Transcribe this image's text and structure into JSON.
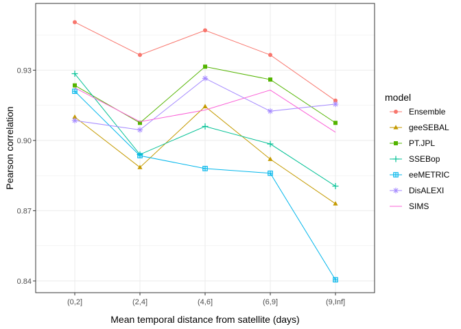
{
  "chart_data": {
    "type": "line",
    "xlabel": "Mean temporal distance from satellite (days)",
    "ylabel": "Pearson correlation",
    "categories": [
      "(0,2]",
      "(2,4]",
      "(4,6]",
      "(6,9]",
      "(9,Inf]"
    ],
    "ylim": [
      0.835,
      0.9585
    ],
    "yticks": [
      0.84,
      0.87,
      0.9,
      0.93
    ],
    "ytick_labels": [
      "0.84",
      "0.87",
      "0.90",
      "0.93"
    ],
    "grid": true,
    "legend_title": "model",
    "legend_position": "right",
    "series": [
      {
        "name": "Ensemble",
        "color": "#F8766D",
        "marker": "circle",
        "values": [
          0.9505,
          0.9365,
          0.947,
          0.9365,
          0.917
        ]
      },
      {
        "name": "geeSEBAL",
        "color": "#C49A00",
        "marker": "triangle",
        "values": [
          0.91,
          0.8885,
          0.9145,
          0.892,
          0.873
        ]
      },
      {
        "name": "PT.JPL",
        "color": "#53B400",
        "marker": "square",
        "values": [
          0.9235,
          0.9075,
          0.9315,
          0.926,
          0.9075
        ]
      },
      {
        "name": "SSEBop",
        "color": "#00C094",
        "marker": "plus",
        "values": [
          0.9285,
          0.894,
          0.906,
          0.8985,
          0.8805
        ]
      },
      {
        "name": "eeMETRIC",
        "color": "#00B6EB",
        "marker": "square-cross",
        "values": [
          0.921,
          0.8935,
          0.888,
          0.886,
          0.8405
        ]
      },
      {
        "name": "DisALEXI",
        "color": "#A58AFF",
        "marker": "asterisk",
        "values": [
          0.9085,
          0.9045,
          0.9265,
          0.9125,
          0.9155
        ]
      },
      {
        "name": "SIMS",
        "color": "#FB61D7",
        "marker": "none",
        "values": [
          0.9225,
          0.908,
          0.913,
          0.9215,
          0.9035
        ]
      }
    ]
  }
}
